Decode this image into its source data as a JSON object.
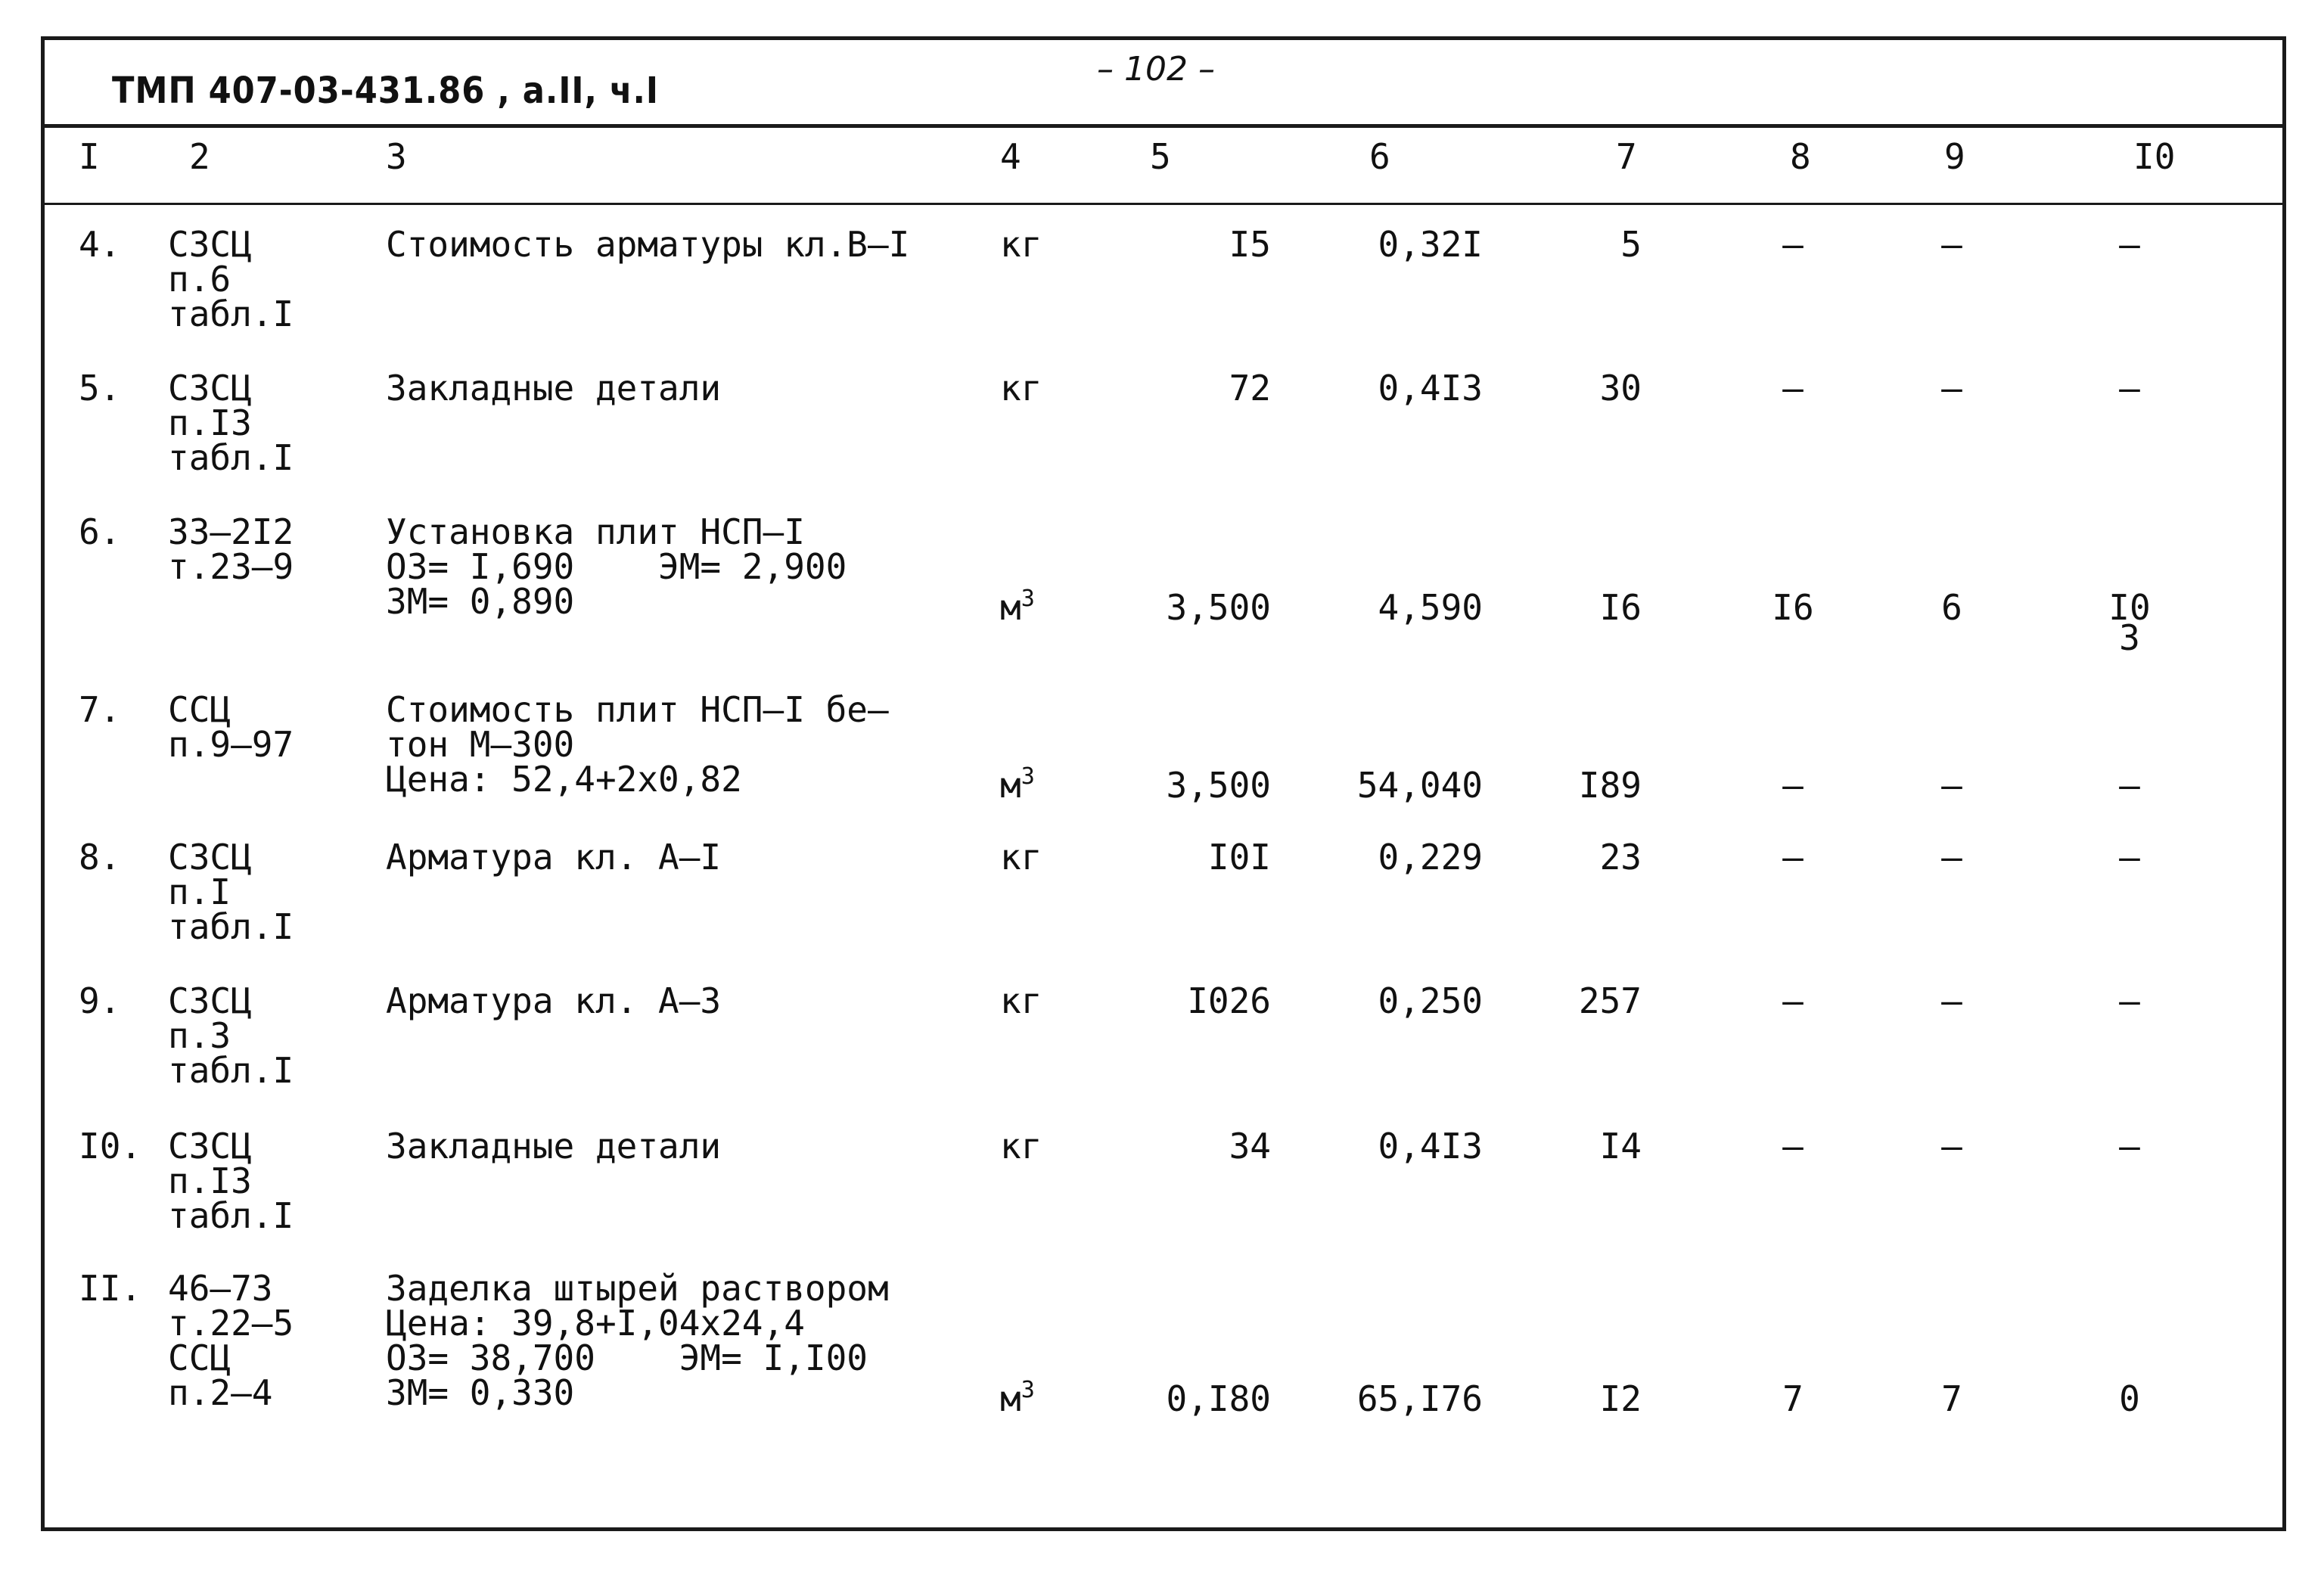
{
  "header": {
    "title": "ТМП 407-03-431.86 , а.II, ч.I",
    "page_number": "– 102 –"
  },
  "columns": [
    "I",
    "2",
    "3",
    "4",
    "5",
    "6",
    "7",
    "8",
    "9",
    "I0"
  ],
  "rows": [
    {
      "no": "4.",
      "ref": [
        "СЗСЦ",
        "п.6",
        "табл.I"
      ],
      "desc": [
        "Стоимость арматуры кл.В–I"
      ],
      "unit": "кг",
      "unit_sup": "",
      "c5": "I5",
      "c6": "0,32I",
      "c7": "5",
      "c8": "–",
      "c9": "–",
      "c10": [
        "–"
      ]
    },
    {
      "no": "5.",
      "ref": [
        "СЗСЦ",
        "п.I3",
        "табл.I"
      ],
      "desc": [
        "Закладные детали"
      ],
      "unit": "кг",
      "unit_sup": "",
      "c5": "72",
      "c6": "0,4I3",
      "c7": "30",
      "c8": "–",
      "c9": "–",
      "c10": [
        "–"
      ]
    },
    {
      "no": "6.",
      "ref": [
        "33–2I2",
        "т.23–9"
      ],
      "desc": [
        "Установка плит НСП–I",
        "ОЗ= I,690    ЭМ= 2,900",
        "ЗМ= 0,890"
      ],
      "unit": "м",
      "unit_sup": "3",
      "c5": "3,500",
      "c6": "4,590",
      "c7": "I6",
      "c8": "I6",
      "c9": "6",
      "c10": [
        "I0",
        "3"
      ]
    },
    {
      "no": "7.",
      "ref": [
        "ССЦ",
        "п.9–97"
      ],
      "desc": [
        "Стоимость плит НСП–I бе–",
        "тон М–300",
        "Цена: 52,4+2х0,82"
      ],
      "unit": "м",
      "unit_sup": "3",
      "c5": "3,500",
      "c6": "54,040",
      "c7": "I89",
      "c8": "–",
      "c9": "–",
      "c10": [
        "–"
      ]
    },
    {
      "no": "8.",
      "ref": [
        "СЗСЦ",
        "п.I",
        "табл.I"
      ],
      "desc": [
        "Арматура кл. А–I"
      ],
      "unit": "кг",
      "unit_sup": "",
      "c5": "I0I",
      "c6": "0,229",
      "c7": "23",
      "c8": "–",
      "c9": "–",
      "c10": [
        "–"
      ]
    },
    {
      "no": "9.",
      "ref": [
        "СЗСЦ",
        "п.3",
        "табл.I"
      ],
      "desc": [
        "Арматура кл. А–3"
      ],
      "unit": "кг",
      "unit_sup": "",
      "c5": "I026",
      "c6": "0,250",
      "c7": "257",
      "c8": "–",
      "c9": "–",
      "c10": [
        "–"
      ]
    },
    {
      "no": "I0.",
      "ref": [
        "СЗСЦ",
        "п.I3",
        "табл.I"
      ],
      "desc": [
        "Закладные детали"
      ],
      "unit": "кг",
      "unit_sup": "",
      "c5": "34",
      "c6": "0,4I3",
      "c7": "I4",
      "c8": "–",
      "c9": "–",
      "c10": [
        "–"
      ]
    },
    {
      "no": "II.",
      "ref": [
        "46–73",
        "т.22–5",
        "ССЦ",
        "п.2–4"
      ],
      "desc": [
        "Заделка штырей раствором",
        "Цена: 39,8+I,04х24,4",
        "ОЗ= 38,700    ЭМ= I,I00",
        "ЗМ= 0,330"
      ],
      "unit": "м",
      "unit_sup": "3",
      "c5": "0,I80",
      "c6": "65,I76",
      "c7": "I2",
      "c8": "7",
      "c9": "7",
      "c10": [
        "0"
      ]
    }
  ]
}
